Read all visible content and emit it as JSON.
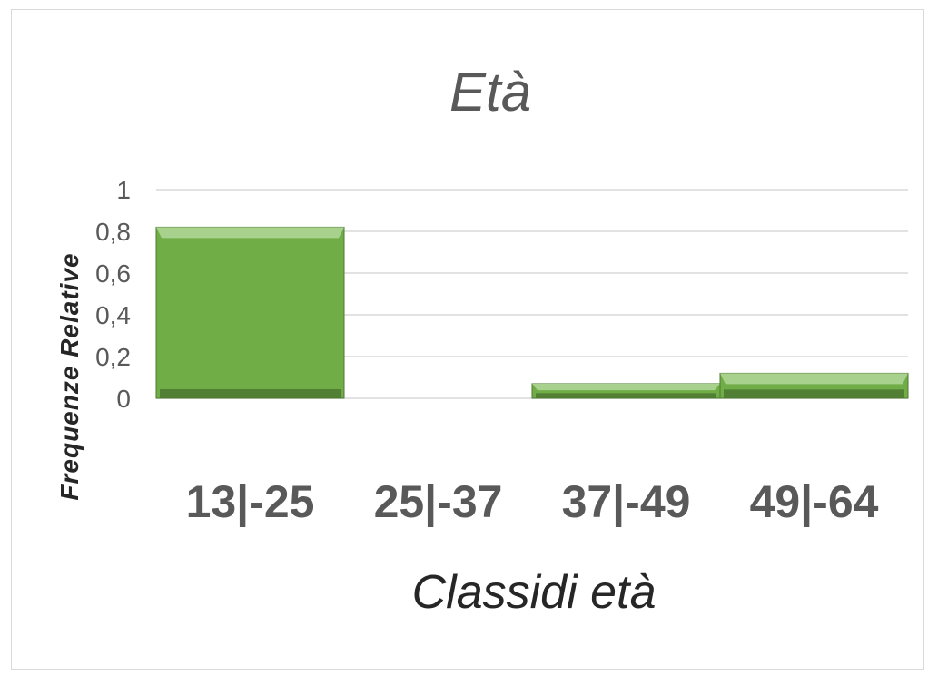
{
  "chart_data": {
    "type": "bar",
    "title": "Età",
    "xlabel": "Classidi età",
    "ylabel": "Frequenze Relative",
    "categories": [
      "13|-25",
      "25|-37",
      "37|-49",
      "49|-64"
    ],
    "values": [
      0.82,
      0.0,
      0.07,
      0.12
    ],
    "ylim": [
      0,
      1
    ],
    "yticks": [
      "0",
      "0,2",
      "0,4",
      "0,6",
      "0,8",
      "1"
    ],
    "grid": true,
    "bar_color": "#70ad47",
    "bar_top_color": "#a9d18e",
    "bar_shadow_color": "#4e7a32"
  }
}
